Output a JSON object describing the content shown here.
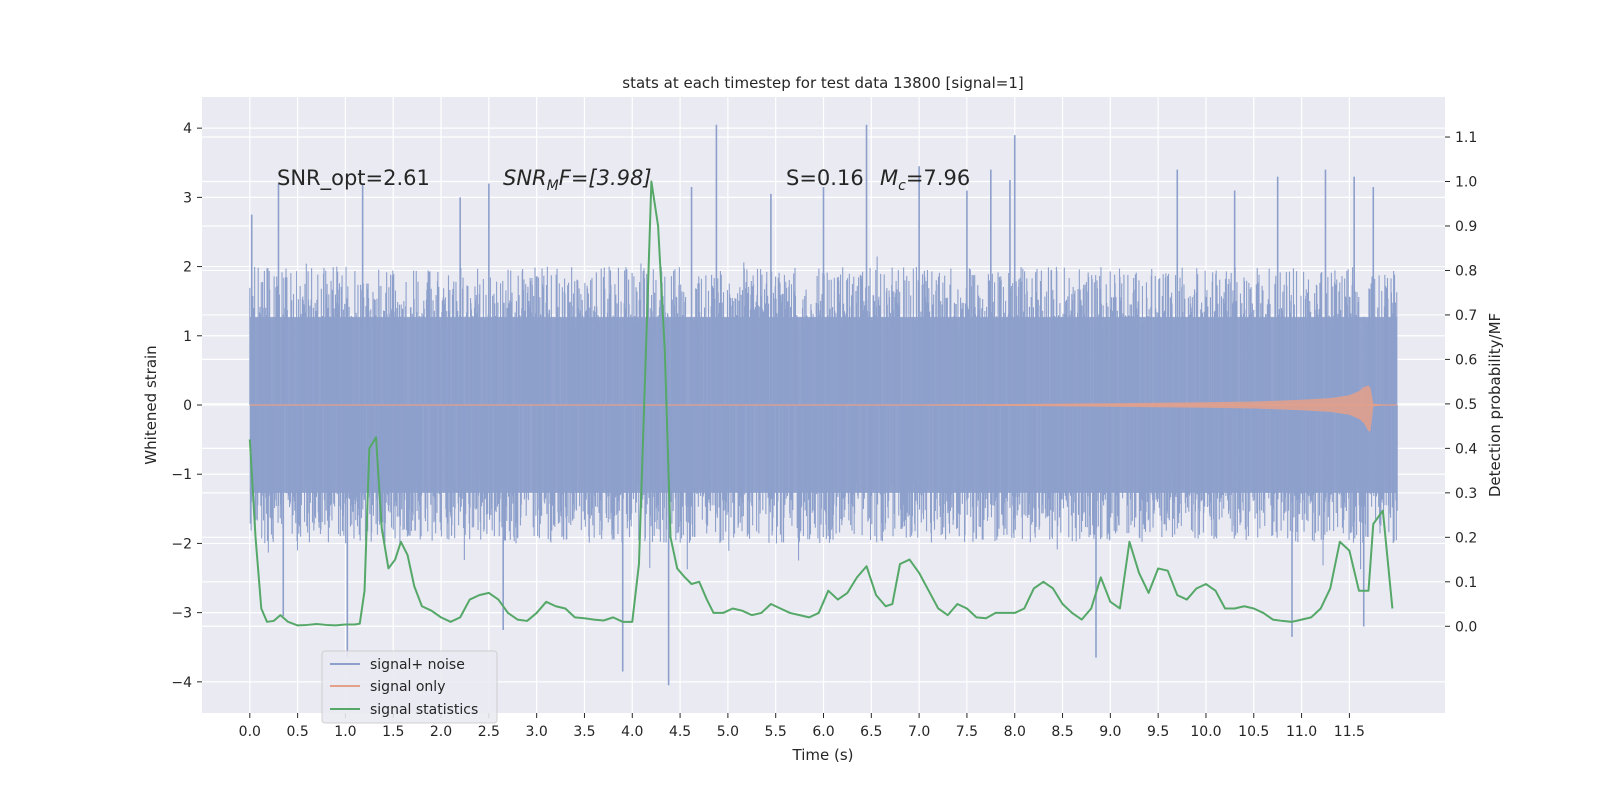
{
  "chart_data": {
    "type": "line",
    "title": "stats at each timestep for test data 13800 [signal=1]",
    "xlabel": "Time (s)",
    "ylabel_left": "Whitened strain",
    "ylabel_right": "Detection probability/MF",
    "xlim": [
      -0.5,
      12.5
    ],
    "ylim_left": [
      -4.45,
      4.45
    ],
    "ylim_right": [
      -0.195,
      1.19
    ],
    "x_ticks": [
      0.0,
      0.5,
      1.0,
      1.5,
      2.0,
      2.5,
      3.0,
      3.5,
      4.0,
      4.5,
      5.0,
      5.5,
      6.0,
      6.5,
      7.0,
      7.5,
      8.0,
      8.5,
      9.0,
      9.5,
      10.0,
      10.5,
      11.0,
      11.5
    ],
    "x_tick_labels": [
      "0.0",
      "0.5",
      "1.0",
      "1.5",
      "2.0",
      "2.5",
      "3.0",
      "3.5",
      "4.0",
      "4.5",
      "5.0",
      "5.5",
      "6.0",
      "6.5",
      "7.0",
      "7.5",
      "8.0",
      "8.5",
      "9.0",
      "9.5",
      "10.0",
      "10.5",
      "11.0",
      "11.5"
    ],
    "y_left_ticks": [
      4,
      3,
      2,
      1,
      0,
      -1,
      -2,
      -3,
      -4
    ],
    "y_left_tick_labels": [
      "4",
      "3",
      "2",
      "1",
      "0",
      "−1",
      "−2",
      "−3",
      "−4"
    ],
    "y_right_ticks": [
      1.1,
      1.0,
      0.9,
      0.8,
      0.7,
      0.6,
      0.5,
      0.4,
      0.3,
      0.2,
      0.1,
      0.0
    ],
    "y_right_tick_labels": [
      "1.1",
      "1.0",
      "0.9",
      "0.8",
      "0.7",
      "0.6",
      "0.5",
      "0.4",
      "0.3",
      "0.2",
      "0.1",
      "0.0"
    ],
    "grid": true,
    "legend_placement": "lower-left",
    "annotations": {
      "snr_opt": "SNR_opt=2.61",
      "snr_mf_base": "SNR",
      "snr_mf_sub": "M",
      "snr_mf_rest": "F=[3.98]",
      "s_value": "S=0.16",
      "mc_base": "M",
      "mc_sub": "c",
      "mc_rest": "=7.96"
    },
    "series": [
      {
        "name": "signal+ noise",
        "axis": "left",
        "color": "#8da0cb",
        "duration": 12.0,
        "core_band": 1.27,
        "extreme_bursts": [
          [
            0.02,
            2.75
          ],
          [
            0.3,
            3.2
          ],
          [
            0.35,
            -3.05
          ],
          [
            1.02,
            -3.65
          ],
          [
            1.18,
            3.2
          ],
          [
            2.2,
            3.0
          ],
          [
            2.5,
            3.2
          ],
          [
            2.65,
            -3.25
          ],
          [
            3.9,
            -3.85
          ],
          [
            4.38,
            -4.05
          ],
          [
            4.62,
            3.15
          ],
          [
            4.88,
            4.05
          ],
          [
            5.45,
            3.05
          ],
          [
            6.0,
            3.15
          ],
          [
            6.45,
            4.05
          ],
          [
            7.0,
            3.45
          ],
          [
            7.5,
            3.1
          ],
          [
            7.75,
            3.4
          ],
          [
            7.95,
            3.25
          ],
          [
            8.0,
            3.9
          ],
          [
            8.85,
            -3.65
          ],
          [
            9.7,
            3.4
          ],
          [
            10.3,
            3.1
          ],
          [
            10.75,
            3.3
          ],
          [
            10.9,
            -3.35
          ],
          [
            11.25,
            3.4
          ],
          [
            11.55,
            3.3
          ],
          [
            11.65,
            -3.2
          ],
          [
            11.75,
            3.15
          ]
        ]
      },
      {
        "name": "signal only",
        "axis": "left",
        "color": "#e5a08a",
        "x": [
          0.0,
          7.0,
          8.0,
          9.0,
          10.0,
          10.5,
          11.0,
          11.3,
          11.5,
          11.6,
          11.65,
          11.7,
          11.72,
          11.75,
          11.9,
          12.0
        ],
        "y_envelope": [
          0.005,
          0.008,
          0.015,
          0.025,
          0.04,
          0.05,
          0.075,
          0.1,
          0.14,
          0.2,
          0.26,
          0.28,
          0.25,
          0.02,
          0.0,
          0.0
        ]
      },
      {
        "name": "signal statistics",
        "axis": "right",
        "color": "#55a868",
        "x": [
          0.0,
          0.06,
          0.12,
          0.18,
          0.25,
          0.32,
          0.4,
          0.5,
          0.6,
          0.7,
          0.8,
          0.9,
          1.0,
          1.1,
          1.15,
          1.2,
          1.25,
          1.32,
          1.38,
          1.45,
          1.52,
          1.58,
          1.65,
          1.72,
          1.8,
          1.9,
          2.0,
          2.1,
          2.2,
          2.3,
          2.4,
          2.5,
          2.6,
          2.7,
          2.8,
          2.9,
          3.0,
          3.1,
          3.2,
          3.3,
          3.4,
          3.5,
          3.6,
          3.7,
          3.8,
          3.9,
          4.0,
          4.07,
          4.14,
          4.2,
          4.27,
          4.34,
          4.4,
          4.47,
          4.55,
          4.62,
          4.7,
          4.78,
          4.85,
          4.95,
          5.05,
          5.15,
          5.25,
          5.35,
          5.45,
          5.55,
          5.65,
          5.75,
          5.85,
          5.95,
          6.05,
          6.15,
          6.25,
          6.35,
          6.45,
          6.55,
          6.65,
          6.72,
          6.8,
          6.9,
          7.0,
          7.1,
          7.2,
          7.3,
          7.4,
          7.5,
          7.6,
          7.7,
          7.8,
          7.9,
          8.0,
          8.1,
          8.2,
          8.3,
          8.4,
          8.5,
          8.6,
          8.7,
          8.8,
          8.9,
          9.0,
          9.1,
          9.2,
          9.3,
          9.4,
          9.5,
          9.6,
          9.7,
          9.8,
          9.9,
          10.0,
          10.1,
          10.2,
          10.3,
          10.4,
          10.5,
          10.6,
          10.7,
          10.8,
          10.9,
          11.0,
          11.1,
          11.2,
          11.3,
          11.4,
          11.5,
          11.6,
          11.7,
          11.75,
          11.85,
          11.95
        ],
        "values": [
          0.42,
          0.2,
          0.04,
          0.01,
          0.012,
          0.025,
          0.01,
          0.002,
          0.003,
          0.005,
          0.003,
          0.002,
          0.004,
          0.004,
          0.006,
          0.08,
          0.4,
          0.425,
          0.22,
          0.13,
          0.15,
          0.19,
          0.16,
          0.09,
          0.045,
          0.035,
          0.02,
          0.01,
          0.02,
          0.06,
          0.07,
          0.075,
          0.06,
          0.03,
          0.015,
          0.012,
          0.03,
          0.055,
          0.045,
          0.04,
          0.02,
          0.018,
          0.015,
          0.013,
          0.02,
          0.01,
          0.01,
          0.14,
          0.6,
          1.0,
          0.9,
          0.62,
          0.2,
          0.13,
          0.11,
          0.095,
          0.1,
          0.06,
          0.03,
          0.03,
          0.04,
          0.035,
          0.025,
          0.03,
          0.05,
          0.04,
          0.03,
          0.025,
          0.02,
          0.03,
          0.08,
          0.06,
          0.075,
          0.11,
          0.135,
          0.07,
          0.045,
          0.05,
          0.14,
          0.15,
          0.12,
          0.08,
          0.04,
          0.025,
          0.05,
          0.04,
          0.02,
          0.018,
          0.03,
          0.03,
          0.03,
          0.04,
          0.085,
          0.1,
          0.085,
          0.05,
          0.03,
          0.015,
          0.04,
          0.11,
          0.055,
          0.04,
          0.19,
          0.12,
          0.075,
          0.13,
          0.125,
          0.07,
          0.06,
          0.085,
          0.095,
          0.08,
          0.04,
          0.04,
          0.045,
          0.04,
          0.03,
          0.015,
          0.012,
          0.01,
          0.015,
          0.02,
          0.04,
          0.085,
          0.19,
          0.17,
          0.08,
          0.08,
          0.23,
          0.26,
          0.04
        ]
      }
    ]
  }
}
